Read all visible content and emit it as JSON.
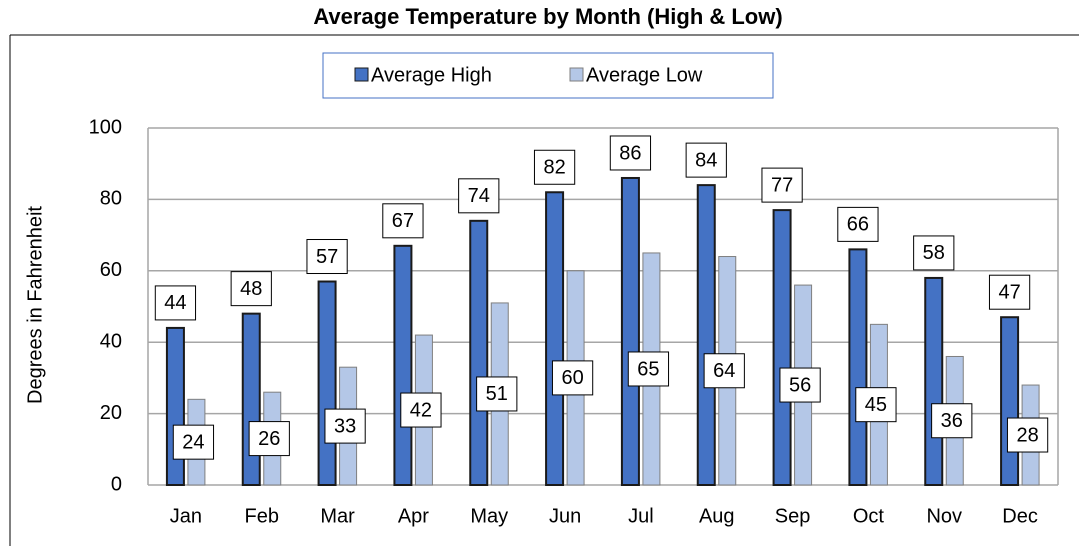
{
  "chart_data": {
    "type": "bar",
    "title": "Average Temperature by Month (High & Low)",
    "y_label": "Degrees in Fahrenheit",
    "categories": [
      "Jan",
      "Feb",
      "Mar",
      "Apr",
      "May",
      "Jun",
      "Jul",
      "Aug",
      "Sep",
      "Oct",
      "Nov",
      "Dec"
    ],
    "series": [
      {
        "name": "Average High",
        "color": "#4472c4",
        "values": [
          44,
          48,
          57,
          67,
          74,
          82,
          86,
          84,
          77,
          66,
          58,
          47
        ]
      },
      {
        "name": "Average Low",
        "color": "#b4c7e7",
        "values": [
          24,
          26,
          33,
          42,
          51,
          60,
          65,
          64,
          56,
          45,
          36,
          28
        ]
      }
    ],
    "ylim": [
      0,
      100
    ],
    "yticks": [
      0,
      20,
      40,
      60,
      80,
      100
    ],
    "grid": true,
    "legend": "top"
  }
}
